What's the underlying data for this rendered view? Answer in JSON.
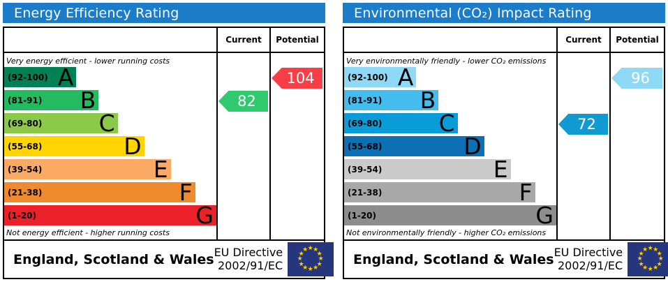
{
  "chart_data": [
    {
      "type": "bar",
      "title": "Energy Efficiency Rating",
      "categories": [
        "A",
        "B",
        "C",
        "D",
        "E",
        "F",
        "G"
      ],
      "band_ranges": [
        "92-100",
        "81-91",
        "69-80",
        "55-68",
        "39-54",
        "21-38",
        "1-20"
      ],
      "band_colors": [
        "#008054",
        "#24bb60",
        "#8cc949",
        "#ffd400",
        "#fbaa65",
        "#ef8a2e",
        "#ec2029"
      ],
      "current": 82,
      "current_band": "B",
      "potential": 104,
      "potential_band": "A",
      "legend_position": "none",
      "annotations": [
        "Very energy efficient - lower running costs",
        "Not energy efficient - higher running costs"
      ]
    },
    {
      "type": "bar",
      "title": "Environmental (CO₂) Impact Rating",
      "categories": [
        "A",
        "B",
        "C",
        "D",
        "E",
        "F",
        "G"
      ],
      "band_ranges": [
        "92-100",
        "81-91",
        "69-80",
        "55-68",
        "39-54",
        "21-38",
        "1-20"
      ],
      "band_colors": [
        "#8ed9f5",
        "#44bced",
        "#0a9cd8",
        "#0d6fb4",
        "#cacaca",
        "#a8a8a8",
        "#8d8d8d"
      ],
      "current": 72,
      "current_band": "C",
      "potential": 96,
      "potential_band": "A",
      "legend_position": "none",
      "annotations": [
        "Very environmentally friendly - lower CO₂ emissions",
        "Not environmentally friendly - higher CO₂ emissions"
      ]
    }
  ],
  "accent": {
    "header_bg": "#1b7cc9",
    "flag_bg": "#26367d",
    "flag_star": "#ffcc00"
  },
  "panels": [
    {
      "title": "Energy Efficiency Rating",
      "header": {
        "current": "Current",
        "potential": "Potential"
      },
      "captions": {
        "top": "Very energy efficient - lower running costs",
        "bottom": "Not energy efficient - higher running costs"
      },
      "bands": [
        {
          "letter": "A",
          "range": "(92-100)",
          "color": "#008054",
          "width_pct": 34
        },
        {
          "letter": "B",
          "range": "(81-91)",
          "color": "#24bb60",
          "width_pct": 44.5
        },
        {
          "letter": "C",
          "range": "(69-80)",
          "color": "#8cc949",
          "width_pct": 53.5
        },
        {
          "letter": "D",
          "range": "(55-68)",
          "color": "#ffd400",
          "width_pct": 66
        },
        {
          "letter": "E",
          "range": "(39-54)",
          "color": "#fbaa65",
          "width_pct": 78.5
        },
        {
          "letter": "F",
          "range": "(21-38)",
          "color": "#ef8a2e",
          "width_pct": 90
        },
        {
          "letter": "G",
          "range": "(1-20)",
          "color": "#ec2029",
          "width_pct": 100
        }
      ],
      "current": {
        "value": "82",
        "row": 1,
        "color": "#31c96e"
      },
      "potential": {
        "value": "104",
        "row": 0,
        "color": "#f93e46"
      },
      "footer": {
        "region": "England, Scotland & Wales",
        "directive_line1": "EU Directive",
        "directive_line2": "2002/91/EC"
      }
    },
    {
      "title": "Environmental (CO₂) Impact Rating",
      "header": {
        "current": "Current",
        "potential": "Potential"
      },
      "captions": {
        "top": "Very environmentally friendly - lower CO₂ emissions",
        "bottom": "Not environmentally friendly - higher CO₂ emissions"
      },
      "bands": [
        {
          "letter": "A",
          "range": "(92-100)",
          "color": "#8ed9f5",
          "width_pct": 34
        },
        {
          "letter": "B",
          "range": "(81-91)",
          "color": "#44bced",
          "width_pct": 44.5
        },
        {
          "letter": "C",
          "range": "(69-80)",
          "color": "#0a9cd8",
          "width_pct": 53.5
        },
        {
          "letter": "D",
          "range": "(55-68)",
          "color": "#0d6fb4",
          "width_pct": 66
        },
        {
          "letter": "E",
          "range": "(39-54)",
          "color": "#cacaca",
          "width_pct": 78.5
        },
        {
          "letter": "F",
          "range": "(21-38)",
          "color": "#a8a8a8",
          "width_pct": 90
        },
        {
          "letter": "G",
          "range": "(1-20)",
          "color": "#8d8d8d",
          "width_pct": 100
        }
      ],
      "current": {
        "value": "72",
        "row": 2,
        "color": "#0f9ad2"
      },
      "potential": {
        "value": "96",
        "row": 0,
        "color": "#8ed9f5"
      },
      "footer": {
        "region": "England, Scotland & Wales",
        "directive_line1": "EU Directive",
        "directive_line2": "2002/91/EC"
      }
    }
  ]
}
